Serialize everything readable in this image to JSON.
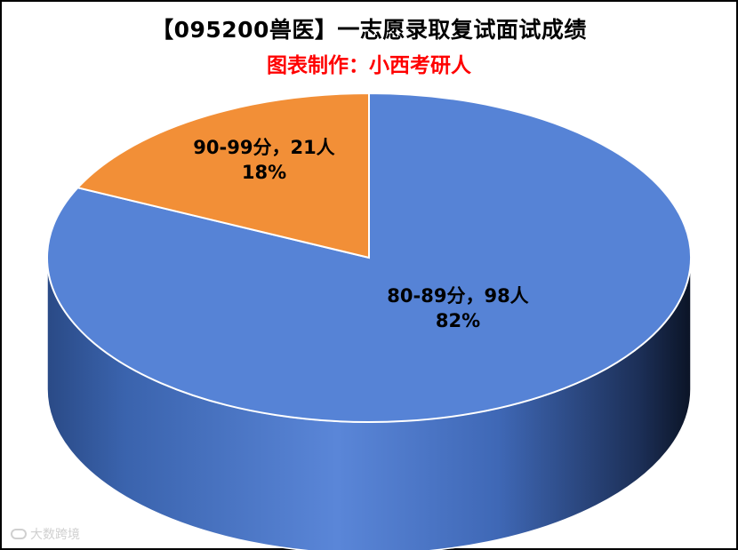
{
  "chart_data": {
    "type": "pie",
    "title": "【095200兽医】一志愿录取复试面试成绩",
    "subtitle": "图表制作：小西考研人",
    "slices": [
      {
        "category": "80-89分",
        "count": 98,
        "count_label": "80-89分，98人",
        "percent_label": "82%",
        "value": 82,
        "color": "#5683d6"
      },
      {
        "category": "90-99分",
        "count": 21,
        "count_label": "90-99分，21人",
        "percent_label": "18%",
        "value": 18,
        "color": "#f28f37"
      }
    ]
  },
  "watermark": {
    "text": "大数跨境"
  }
}
